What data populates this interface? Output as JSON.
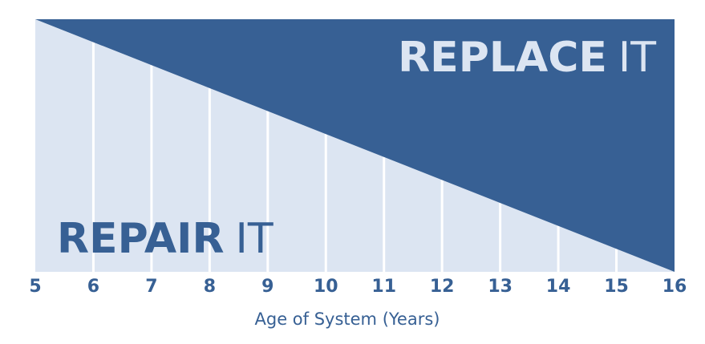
{
  "chart_data": {
    "type": "area",
    "x": [
      5,
      6,
      7,
      8,
      9,
      10,
      11,
      12,
      13,
      14,
      15,
      16
    ],
    "boundary_line": {
      "x": [
        5,
        16
      ],
      "y": [
        1,
        0
      ]
    },
    "xlabel": "Age of System (Years)",
    "ylabel": "",
    "xlim": [
      5,
      16
    ],
    "ylim": [
      0,
      1
    ],
    "grid": "vertical",
    "zones": {
      "replace": {
        "label_bold": "REPLACE",
        "label_light": "IT",
        "color": "#376094"
      },
      "repair": {
        "label_bold": "REPAIR",
        "label_light": "IT",
        "color": "#dce5f2"
      }
    },
    "gridline_color": "#ffffff",
    "tick_color": "#376094",
    "label_color": "#376094"
  }
}
